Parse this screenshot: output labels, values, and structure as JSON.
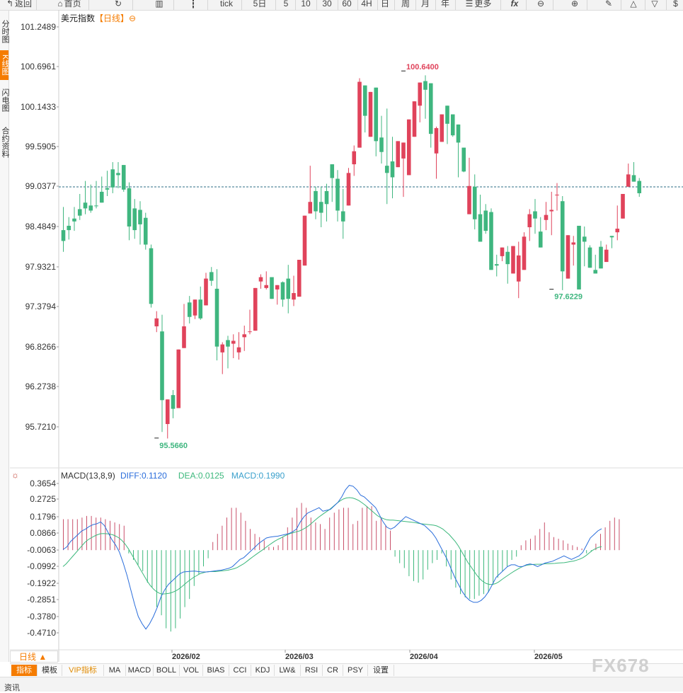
{
  "toolbar": {
    "items": [
      {
        "label": "返回",
        "icon": "back-arrow"
      },
      {
        "label": "首页",
        "icon": "home"
      },
      {
        "label": "",
        "icon": "refresh"
      },
      {
        "label": "",
        "icon": "bar-chart"
      },
      {
        "label": "",
        "icon": "candle"
      },
      {
        "label": "tick"
      },
      {
        "label": "5日"
      },
      {
        "label": "5"
      },
      {
        "label": "10"
      },
      {
        "label": "30"
      },
      {
        "label": "60"
      },
      {
        "label": "4H"
      },
      {
        "label": "日"
      },
      {
        "label": "周"
      },
      {
        "label": "月"
      },
      {
        "label": "年"
      },
      {
        "label": "更多",
        "icon": "menu"
      },
      {
        "label": "fx"
      },
      {
        "label": "",
        "icon": "zoom-out"
      },
      {
        "label": "",
        "icon": "zoom-in"
      },
      {
        "label": "",
        "icon": "pen"
      },
      {
        "label": "",
        "icon": "triangle-up"
      },
      {
        "label": "",
        "icon": "triangle-down"
      },
      {
        "label": "$",
        "icon": "dollar"
      }
    ]
  },
  "side_tabs": [
    {
      "label": "分时图",
      "active": false
    },
    {
      "label": "K线图",
      "active": true
    },
    {
      "label": "闪电图",
      "active": false
    },
    {
      "label": "合约资料",
      "active": false
    }
  ],
  "chart_title": {
    "name": "美元指数",
    "period": "【日线】",
    "toggle": "⊖"
  },
  "colors": {
    "up": "#e0435b",
    "down": "#3fb67f",
    "dashed": "#2d6e86",
    "diff": "#2a6ddb",
    "dea": "#3cb87c"
  },
  "chart_data": [
    {
      "type": "candlestick",
      "title": "美元指数【日线】",
      "y_ticks": [
        "101.2489",
        "100.6961",
        "100.1433",
        "99.5905",
        "99.0377",
        "98.4849",
        "97.9321",
        "97.3794",
        "96.8266",
        "96.2738",
        "95.7210"
      ],
      "ylim": [
        95.31,
        101.42
      ],
      "current_price_line": 99.0377,
      "x_ticks": [
        "2026/02",
        "2026/03",
        "2026/04",
        "2026/05"
      ],
      "annotations": [
        {
          "label": "100.6400",
          "type": "high"
        },
        {
          "label": "95.5660",
          "type": "low"
        },
        {
          "label": "97.6229",
          "type": "local-low"
        }
      ],
      "candles": [
        [
          98.44,
          98.76,
          98.29,
          98.14
        ],
        [
          98.5,
          98.62,
          98.44,
          98.31
        ],
        [
          98.6,
          98.76,
          98.56,
          98.43
        ],
        [
          98.73,
          98.94,
          98.64,
          98.58
        ],
        [
          98.82,
          99.12,
          98.74,
          98.66
        ],
        [
          98.78,
          99.07,
          98.71,
          98.68
        ],
        [
          98.78,
          99.12,
          98.77,
          98.74
        ],
        [
          98.97,
          99.18,
          98.82,
          98.87
        ],
        [
          99.02,
          99.26,
          99.0,
          98.91
        ],
        [
          99.28,
          99.38,
          99.03,
          98.95
        ],
        [
          99.23,
          99.38,
          99.2,
          99.02
        ],
        [
          99.34,
          99.34,
          99.0,
          98.97
        ],
        [
          99.02,
          99.1,
          98.49,
          98.3
        ],
        [
          98.74,
          98.87,
          98.44,
          98.32
        ],
        [
          98.72,
          98.84,
          98.52,
          98.24
        ],
        [
          98.61,
          98.68,
          98.24,
          98.17
        ],
        [
          98.19,
          98.24,
          97.42,
          97.37
        ],
        [
          97.11,
          97.32,
          97.22,
          97.03
        ],
        [
          97.04,
          97.27,
          96.09,
          95.65
        ],
        [
          95.76,
          95.79,
          96.1,
          95.56
        ],
        [
          96.16,
          96.23,
          95.97,
          95.84
        ],
        [
          95.98,
          96.64,
          96.79,
          96.61
        ],
        [
          96.81,
          97.42,
          97.11,
          96.87
        ],
        [
          97.44,
          97.53,
          97.24,
          97.15
        ],
        [
          97.26,
          97.44,
          97.48,
          97.21
        ],
        [
          97.48,
          97.66,
          97.22,
          97.2
        ],
        [
          97.4,
          97.85,
          97.77,
          97.64
        ],
        [
          97.86,
          97.93,
          97.74,
          97.67
        ],
        [
          97.63,
          97.9,
          96.83,
          96.64
        ],
        [
          96.75,
          96.89,
          96.86,
          96.45
        ],
        [
          96.92,
          96.98,
          96.83,
          96.53
        ],
        [
          96.87,
          97.0,
          96.91,
          96.67
        ],
        [
          96.75,
          97.03,
          96.82,
          96.65
        ],
        [
          96.96,
          97.12,
          97.0,
          96.77
        ],
        [
          97.04,
          97.34,
          97.04,
          97.0
        ],
        [
          97.05,
          97.31,
          97.64,
          97.37
        ],
        [
          97.73,
          97.83,
          97.79,
          97.63
        ],
        [
          97.64,
          97.87,
          97.68,
          97.62
        ],
        [
          97.79,
          97.74,
          97.49,
          97.49
        ],
        [
          97.62,
          97.64,
          97.68,
          97.41
        ],
        [
          97.72,
          97.73,
          97.48,
          97.38
        ],
        [
          97.77,
          97.96,
          97.49,
          97.29
        ],
        [
          97.48,
          97.81,
          97.57,
          97.39
        ],
        [
          97.52,
          97.95,
          98.03,
          97.87
        ],
        [
          97.95,
          98.52,
          98.64,
          98.47
        ],
        [
          98.67,
          99.33,
          98.83,
          98.72
        ],
        [
          98.98,
          99.04,
          98.7,
          98.59
        ],
        [
          98.83,
          99.04,
          98.68,
          98.48
        ],
        [
          98.98,
          99.08,
          98.8,
          98.56
        ],
        [
          99.35,
          99.25,
          99.16,
          98.83
        ],
        [
          99.15,
          99.27,
          98.71,
          98.56
        ],
        [
          98.7,
          99.01,
          98.56,
          98.32
        ],
        [
          98.78,
          99.3,
          99.23,
          99.1
        ],
        [
          99.35,
          99.61,
          99.53,
          99.19
        ],
        [
          99.58,
          100.54,
          100.49,
          100.22
        ],
        [
          100.44,
          100.3,
          100.02,
          99.79
        ],
        [
          99.73,
          99.99,
          100.35,
          100.1
        ],
        [
          100.41,
          100.14,
          99.67,
          99.46
        ],
        [
          99.72,
          100.02,
          99.52,
          99.36
        ],
        [
          99.33,
          100.12,
          99.23,
          98.8
        ],
        [
          99.39,
          99.73,
          99.17,
          98.88
        ],
        [
          99.31,
          99.43,
          99.67,
          99.31
        ],
        [
          99.43,
          99.55,
          99.65,
          98.9
        ],
        [
          99.2,
          99.81,
          99.97,
          99.3
        ],
        [
          99.73,
          100.1,
          100.22,
          99.91
        ],
        [
          100.16,
          100.32,
          100.48,
          99.93
        ],
        [
          100.5,
          100.58,
          100.38,
          99.98
        ],
        [
          100.47,
          100.04,
          99.77,
          99.58
        ],
        [
          99.5,
          99.87,
          99.85,
          99.15
        ],
        [
          99.66,
          99.95,
          100.04,
          99.85
        ],
        [
          100.16,
          100.11,
          99.91,
          99.63
        ],
        [
          100.04,
          99.92,
          99.75,
          99.73
        ],
        [
          99.9,
          99.82,
          99.65,
          99.17
        ],
        [
          99.58,
          99.46,
          99.25,
          99.24
        ],
        [
          98.66,
          99.44,
          99.05,
          98.93
        ],
        [
          99.04,
          99.21,
          98.59,
          98.45
        ],
        [
          98.66,
          98.93,
          98.28,
          98.5
        ],
        [
          98.71,
          98.8,
          98.43,
          98.39
        ],
        [
          98.69,
          98.74,
          97.89,
          97.94
        ],
        [
          97.97,
          98.1,
          97.95,
          97.8
        ],
        [
          98.08,
          98.09,
          98.2,
          98.01
        ],
        [
          98.14,
          98.22,
          97.97,
          97.7
        ],
        [
          97.84,
          97.95,
          98.22,
          97.88
        ],
        [
          97.73,
          98.28,
          98.09,
          97.5
        ],
        [
          97.89,
          98.41,
          98.35,
          98.25
        ],
        [
          98.48,
          98.73,
          98.66,
          98.29
        ],
        [
          98.7,
          98.87,
          98.6,
          98.39
        ],
        [
          98.42,
          98.62,
          98.2,
          98.3
        ],
        [
          98.58,
          98.83,
          98.65,
          98.44
        ],
        [
          98.7,
          98.97,
          98.72,
          98.37
        ],
        [
          98.92,
          99.09,
          98.93,
          98.71
        ],
        [
          98.84,
          98.91,
          97.87,
          97.61
        ],
        [
          97.77,
          98.02,
          98.37,
          98.0
        ],
        [
          98.24,
          98.36,
          98.27,
          97.95
        ],
        [
          98.5,
          98.46,
          97.62,
          97.81
        ],
        [
          98.35,
          98.49,
          98.28,
          97.94
        ],
        [
          98.2,
          98.23,
          97.92,
          97.92
        ],
        [
          97.89,
          98.1,
          97.84,
          97.87
        ],
        [
          98.21,
          98.29,
          97.91,
          97.97
        ],
        [
          98.0,
          98.24,
          98.17,
          98.0
        ],
        [
          98.36,
          98.31,
          98.34,
          98.19
        ],
        [
          98.41,
          98.78,
          98.46,
          98.3
        ],
        [
          98.6,
          98.8,
          98.94,
          98.61
        ],
        [
          99.04,
          99.36,
          99.21,
          99.13
        ],
        [
          99.2,
          99.38,
          99.11,
          99.13
        ],
        [
          99.12,
          99.16,
          98.95,
          98.9
        ]
      ]
    },
    {
      "type": "macd",
      "title": "MACD(13,8,9)",
      "legend": [
        {
          "label": "DIFF:0.1120",
          "color": "#2a6ddb"
        },
        {
          "label": "DEA:0.0125",
          "color": "#3cb87c"
        },
        {
          "label": "MACD:0.1990",
          "color": "#3aa0cc"
        }
      ],
      "y_ticks": [
        "0.3654",
        "0.2725",
        "0.1796",
        "0.0866",
        "-0.0063",
        "-0.0992",
        "-0.1922",
        "-0.2851",
        "-0.3780",
        "-0.4710"
      ],
      "ylim": [
        -0.58,
        0.43
      ],
      "diff": [
        -0.005,
        0.01,
        0.04,
        0.06,
        0.08,
        0.1,
        0.11,
        0.125,
        0.135,
        0.14,
        0.15,
        0.13,
        0.09,
        0.05,
        0.02,
        -0.02,
        -0.08,
        -0.15,
        -0.23,
        -0.31,
        -0.38,
        -0.42,
        -0.45,
        -0.42,
        -0.38,
        -0.33,
        -0.27,
        -0.23,
        -0.2,
        -0.18,
        -0.16,
        -0.14,
        -0.13,
        -0.128,
        -0.126,
        -0.125,
        -0.128,
        -0.13,
        -0.13,
        -0.128,
        -0.125,
        -0.122,
        -0.12,
        -0.115,
        -0.11,
        -0.1,
        -0.08,
        -0.06,
        -0.05,
        -0.03,
        -0.01,
        0.01,
        0.03,
        0.045,
        0.06,
        0.065,
        0.068,
        0.07,
        0.075,
        0.08,
        0.085,
        0.095,
        0.11,
        0.15,
        0.18,
        0.2,
        0.21,
        0.22,
        0.23,
        0.21,
        0.215,
        0.22,
        0.24,
        0.26,
        0.29,
        0.33,
        0.355,
        0.35,
        0.33,
        0.3,
        0.29,
        0.27,
        0.25,
        0.23,
        0.19,
        0.15,
        0.12,
        0.11,
        0.12,
        0.14,
        0.16,
        0.18,
        0.17,
        0.16,
        0.15,
        0.14,
        0.13,
        0.11,
        0.09,
        0.06,
        0.02,
        -0.02,
        -0.06,
        -0.11,
        -0.16,
        -0.2,
        -0.24,
        -0.27,
        -0.29,
        -0.3,
        -0.3,
        -0.29,
        -0.27,
        -0.24,
        -0.2,
        -0.16,
        -0.14,
        -0.12,
        -0.1,
        -0.09,
        -0.09,
        -0.1,
        -0.1,
        -0.09,
        -0.085,
        -0.09,
        -0.1,
        -0.09,
        -0.08,
        -0.075,
        -0.07,
        -0.06,
        -0.05,
        -0.04,
        -0.05,
        -0.06,
        -0.05,
        -0.04,
        -0.02,
        0.02,
        0.06,
        0.08,
        0.1,
        0.112
      ],
      "dea": [
        -0.1,
        -0.085,
        -0.065,
        -0.045,
        -0.025,
        -0.005,
        0.015,
        0.035,
        0.05,
        0.06,
        0.07,
        0.078,
        0.084,
        0.085,
        0.084,
        0.082,
        0.078,
        0.07,
        0.06,
        0.045,
        0.025,
        0.0,
        -0.03,
        -0.06,
        -0.09,
        -0.12,
        -0.15,
        -0.18,
        -0.205,
        -0.225,
        -0.24,
        -0.25,
        -0.254,
        -0.252,
        -0.25,
        -0.245,
        -0.238,
        -0.228,
        -0.215,
        -0.2,
        -0.185,
        -0.172,
        -0.16,
        -0.15,
        -0.14,
        -0.135,
        -0.13,
        -0.128,
        -0.128,
        -0.128,
        -0.126,
        -0.124,
        -0.122,
        -0.12,
        -0.116,
        -0.112,
        -0.105,
        -0.095,
        -0.085,
        -0.072,
        -0.058,
        -0.045,
        -0.032,
        -0.02,
        -0.008,
        0.005,
        0.018,
        0.03,
        0.042,
        0.052,
        0.06,
        0.07,
        0.078,
        0.085,
        0.09,
        0.095,
        0.1,
        0.108,
        0.118,
        0.13,
        0.145,
        0.16,
        0.175,
        0.188,
        0.2,
        0.212,
        0.225,
        0.24,
        0.255,
        0.268,
        0.278,
        0.284,
        0.286,
        0.284,
        0.278,
        0.27,
        0.258,
        0.245,
        0.23,
        0.215,
        0.2,
        0.185,
        0.175,
        0.168,
        0.162,
        0.16,
        0.16,
        0.158,
        0.156,
        0.154,
        0.152,
        0.15,
        0.148,
        0.146,
        0.143,
        0.14,
        0.138,
        0.136,
        0.134,
        0.132,
        0.128,
        0.12,
        0.11,
        0.095,
        0.08,
        0.06,
        0.04,
        0.015,
        -0.015,
        -0.045,
        -0.075,
        -0.1,
        -0.125,
        -0.15,
        -0.17,
        -0.185,
        -0.195,
        -0.2,
        -0.2,
        -0.195,
        -0.185,
        -0.172,
        -0.16,
        -0.148,
        -0.136,
        -0.125,
        -0.115,
        -0.105,
        -0.097,
        -0.092,
        -0.09,
        -0.088,
        -0.087,
        -0.087,
        -0.086,
        -0.084,
        -0.084,
        -0.083,
        -0.082,
        -0.08,
        -0.079,
        -0.078,
        -0.075,
        -0.072,
        -0.069,
        -0.064,
        -0.058,
        -0.05,
        -0.038,
        -0.024,
        -0.01,
        0.0,
        0.008,
        0.012
      ],
      "hist": [
        0.19,
        0.19,
        0.19,
        0.19,
        0.2,
        0.21,
        0.21,
        0.2,
        0.2,
        0.19,
        0.18,
        0.17,
        0.16,
        0.15,
        -0.02,
        -0.06,
        -0.09,
        -0.13,
        -0.2,
        -0.23,
        -0.35,
        -0.4,
        -0.48,
        -0.5,
        -0.48,
        -0.42,
        -0.35,
        -0.3,
        -0.22,
        -0.15,
        -0.1,
        -0.05,
        0.05,
        0.1,
        0.15,
        0.2,
        0.26,
        0.26,
        0.23,
        0.18,
        0.13,
        0.1,
        0.08,
        0.06,
        0.02,
        0.02,
        0.03,
        0.08,
        0.14,
        0.2,
        0.26,
        0.29,
        0.26,
        0.2,
        0.17,
        0.16,
        0.13,
        0.2,
        0.23,
        0.25,
        0.26,
        0.26,
        0.16,
        0.18,
        0.26,
        0.27,
        0.27,
        0.18,
        0.2,
        0.15,
        0.12,
        -0.04,
        -0.08,
        -0.11,
        -0.16,
        -0.19,
        -0.2,
        -0.18,
        -0.12,
        -0.08,
        -0.06,
        -0.02,
        -0.1,
        -0.18,
        -0.23,
        -0.27,
        -0.29,
        -0.3,
        -0.3,
        -0.28,
        -0.27,
        -0.26,
        -0.21,
        -0.17,
        -0.13,
        -0.1,
        -0.06,
        -0.04,
        0.03,
        0.06,
        0.07,
        0.09,
        0.13,
        0.17,
        0.11,
        0.08,
        0.07,
        0.06,
        0.04,
        0.03,
        0.02,
        0.01,
        -0.02,
        -0.01,
        0.04,
        0.1,
        0.14,
        0.18,
        0.2,
        0.19
      ]
    }
  ],
  "period_button": "日线 ▲",
  "indicator_tabs": [
    {
      "label": "指标",
      "active": true
    },
    {
      "label": "模板",
      "active": false
    },
    {
      "label": "VIP指标",
      "active": false,
      "vip": true
    },
    {
      "label": "MA",
      "active": false
    },
    {
      "label": "MACD",
      "active": false
    },
    {
      "label": "BOLL",
      "active": false
    },
    {
      "label": "VOL",
      "active": false
    },
    {
      "label": "BIAS",
      "active": false
    },
    {
      "label": "CCI",
      "active": false
    },
    {
      "label": "KDJ",
      "active": false
    },
    {
      "label": "LW&",
      "active": false
    },
    {
      "label": "RSI",
      "active": false
    },
    {
      "label": "CR",
      "active": false
    },
    {
      "label": "PSY",
      "active": false
    },
    {
      "label": "设置",
      "active": false
    }
  ],
  "bottom_label": "资讯",
  "watermark": "FX678"
}
